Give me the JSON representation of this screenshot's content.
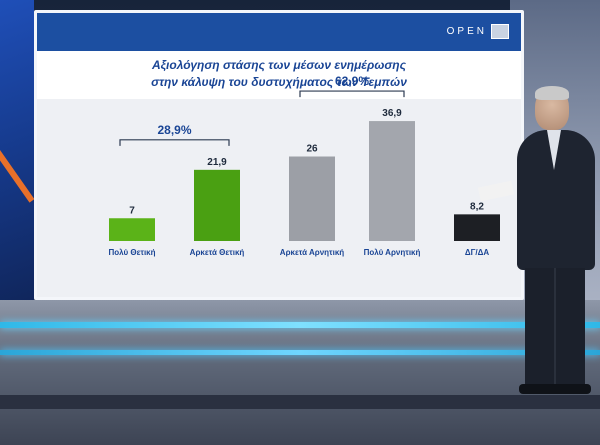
{
  "broadcast": {
    "logo_text": "OPEN"
  },
  "chart_data": {
    "type": "bar",
    "title_lines": [
      "Αξιολόγηση στάσης των μέσων ενημέρωσης",
      "στην κάλυψη του δυστυχήματος των Τεμπών"
    ],
    "categories": [
      "Πολύ Θετική",
      "Αρκετά Θετική",
      "Αρκετά Αρνητική",
      "Πολύ Αρνητική",
      "ΔΓ/ΔΑ"
    ],
    "values": [
      7,
      21.9,
      26,
      36.9,
      8.2
    ],
    "value_labels": [
      "7",
      "21,9",
      "26",
      "36,9",
      "8,2"
    ],
    "colors": [
      "#5bb318",
      "#4aa012",
      "#9c9fa6",
      "#a3a6ad",
      "#1d1f24"
    ],
    "groups": [
      {
        "label": "28,9%",
        "from": 0,
        "to": 1
      },
      {
        "label": "62,9%",
        "from": 2,
        "to": 3
      }
    ],
    "ylim": [
      0,
      40
    ],
    "grid": false,
    "legend": "none"
  }
}
